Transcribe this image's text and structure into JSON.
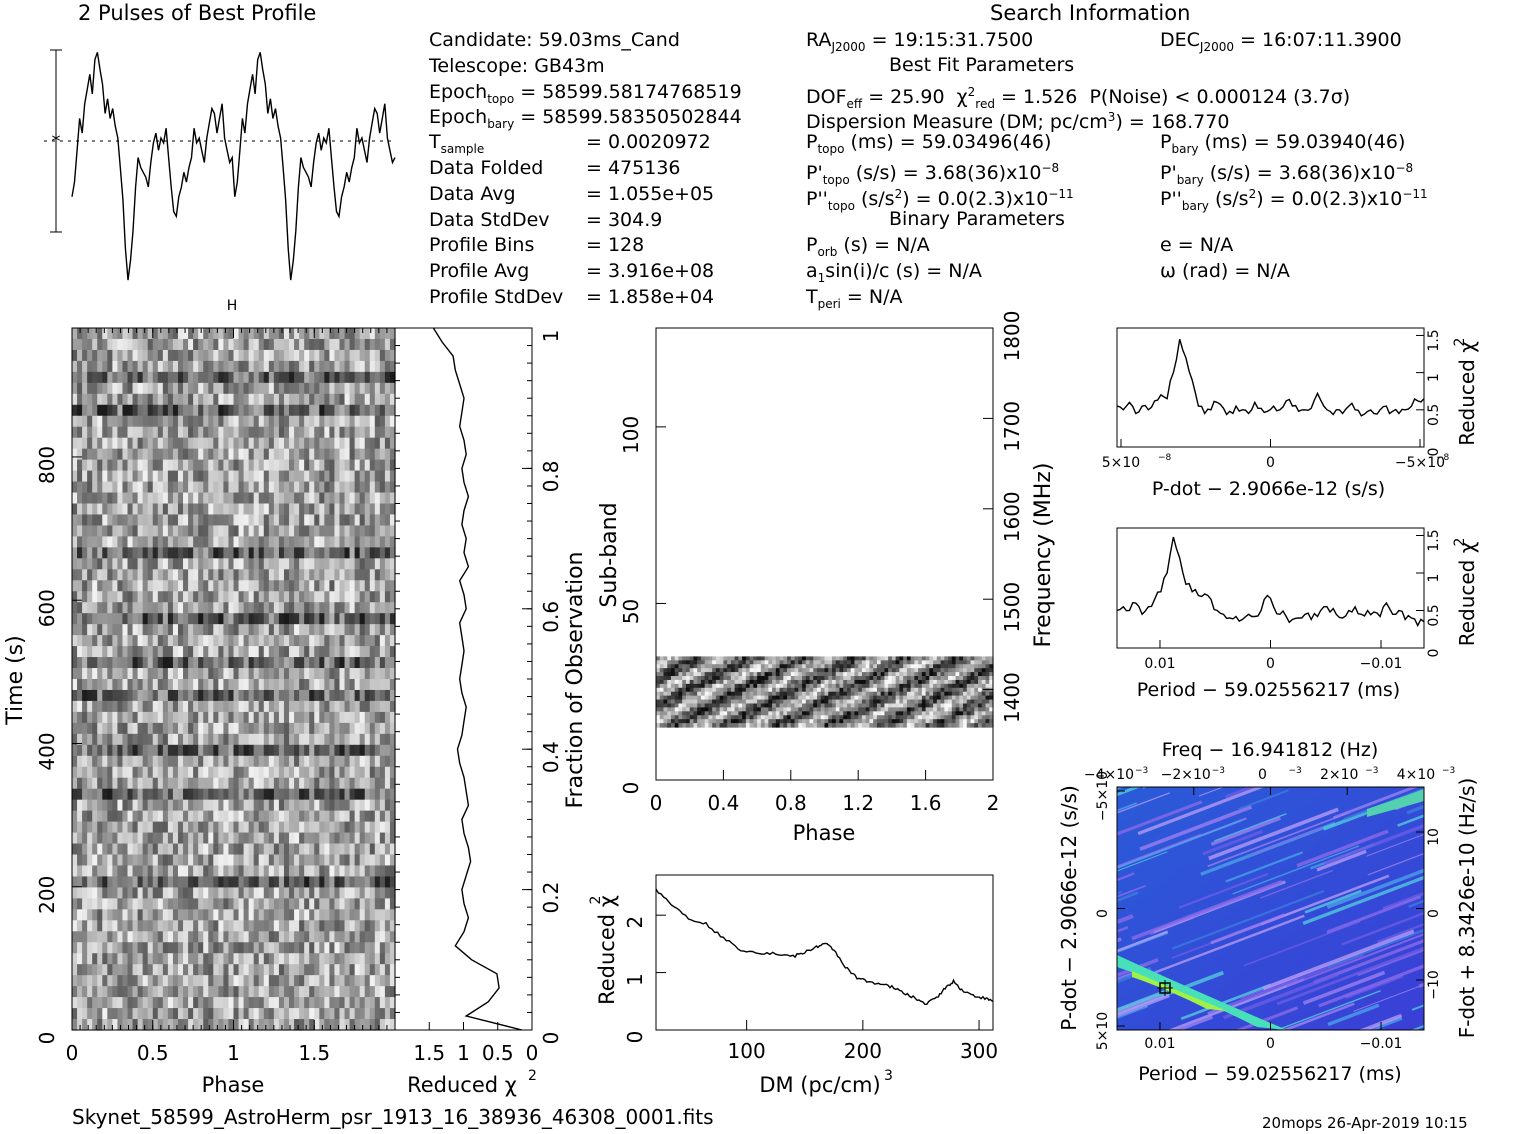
{
  "header": {
    "profile_title": "2 Pulses of Best Profile",
    "search_title": "Search Information",
    "candidate": "Candidate:  59.03ms_Cand",
    "telescope": "Telescope:  GB43m",
    "epoch_topo_label": "Epoch",
    "epoch_topo_sub": "topo",
    "epoch_topo_value": " = 58599.58174768519",
    "epoch_bary_label": "Epoch",
    "epoch_bary_sub": "bary",
    "epoch_bary_value": " = 58599.58350502844",
    "rows": [
      {
        "label": "T",
        "sub": "sample",
        "value": "=   0.0020972"
      },
      {
        "label": "Data Folded",
        "sub": "",
        "value": "=   475136"
      },
      {
        "label": "Data Avg",
        "sub": "",
        "value": "=   1.055e+05"
      },
      {
        "label": "Data StdDev",
        "sub": "",
        "value": "=   304.9"
      },
      {
        "label": "Profile Bins",
        "sub": "",
        "value": "=   128"
      },
      {
        "label": "Profile Avg",
        "sub": "",
        "value": "=   3.916e+08"
      },
      {
        "label": "Profile StdDev",
        "sub": "",
        "value": "=   1.858e+04"
      }
    ]
  },
  "search": {
    "ra": "= 19:15:31.7500",
    "dec": "= 16:07:11.3900",
    "best_fit": "Best Fit Parameters",
    "dof": "DOF",
    "dof_value": " = 25.90",
    "chi_red": " = 1.526",
    "p_noise": "P(Noise) < 0.000124   (3.7σ)",
    "dm_line": "Dispersion Measure (DM; pc/cm",
    "dm_value": ") = 168.770",
    "p_topo": " (ms) =  59.03496(46)",
    "p_bary": " (ms) =  59.03940(46)",
    "pd_topo": " (s/s) =  3.68(36)x10",
    "pd_bary": " (s/s) =  3.68(36)x10",
    "pdd_topo": " (s/s",
    "pdd_bary": " (s/s",
    "pdd_value": ") = 0.0(2.3)x10",
    "binary": "Binary Parameters",
    "porb": " (s) = N/A",
    "asini": "sin(i)/c (s) = N/A",
    "tperi": " = N/A",
    "e": "e = N/A",
    "omega": "ω (rad) = N/A"
  },
  "footer": {
    "filename": "Skynet_58599_AstroHerm_psr_1913_16_38936_46308_0001.fits",
    "stamp": "20mops 26-Apr-2019 10:15"
  },
  "chart_data": [
    {
      "id": "profile",
      "type": "line",
      "title": "2 Pulses of Best Profile",
      "x": [
        0,
        2
      ],
      "values_one_pulse": [
        0.36,
        0.42,
        0.55,
        0.68,
        0.62,
        0.74,
        0.8,
        0.86,
        0.78,
        0.92,
        0.95,
        0.88,
        0.82,
        0.7,
        0.76,
        0.68,
        0.72,
        0.65,
        0.6,
        0.48,
        0.35,
        0.15,
        0.02,
        0.1,
        0.22,
        0.4,
        0.52,
        0.48,
        0.46,
        0.44,
        0.4,
        0.5,
        0.58,
        0.62,
        0.55,
        0.6,
        0.58,
        0.64,
        0.52,
        0.4,
        0.3,
        0.28,
        0.36,
        0.4,
        0.46,
        0.42,
        0.48,
        0.52,
        0.64,
        0.58,
        0.6,
        0.55,
        0.5,
        0.6,
        0.66,
        0.72,
        0.7,
        0.62,
        0.68,
        0.74,
        0.6,
        0.55,
        0.5,
        0.52
      ]
    },
    {
      "id": "time_phase",
      "type": "heatmap",
      "xlabel": "Phase",
      "ylabel": "Time (s)",
      "xlim": [
        0,
        2
      ],
      "ylim": [
        0,
        980
      ],
      "x_ticks": [
        "0",
        "0.5",
        "1",
        "1.5"
      ],
      "y_ticks": [
        "0",
        "200",
        "400",
        "600",
        "800"
      ]
    },
    {
      "id": "chi_time",
      "type": "line",
      "xlabel": "Reduced χ²",
      "ylabel": "Fraction of Observation",
      "xlim": [
        2,
        0
      ],
      "ylim": [
        0,
        1
      ],
      "x_ticks": [
        "1.5",
        "1",
        "0.5",
        "0"
      ],
      "y_ticks": [
        "0",
        "0.2",
        "0.4",
        "0.6",
        "0.8",
        "1"
      ],
      "x": [
        0.02,
        0.04,
        0.06,
        0.08,
        0.1,
        0.12,
        0.14,
        0.16,
        0.18,
        0.2,
        0.22,
        0.24,
        0.26,
        0.28,
        0.3,
        0.32,
        0.34,
        0.36,
        0.38,
        0.4,
        0.42,
        0.44,
        0.46,
        0.48,
        0.5,
        0.52,
        0.54,
        0.56,
        0.58,
        0.6,
        0.62,
        0.64,
        0.66,
        0.68,
        0.7,
        0.72,
        0.74,
        0.76,
        0.78,
        0.8,
        0.82,
        0.84,
        0.86,
        0.88,
        0.9,
        0.92,
        0.94,
        0.96,
        0.98,
        1.0
      ],
      "values": [
        0.6,
        0.4,
        0.3,
        0.32,
        0.55,
        0.7,
        0.62,
        0.58,
        0.62,
        0.64,
        0.6,
        0.56,
        0.58,
        0.62,
        0.64,
        0.58,
        0.6,
        0.62,
        0.66,
        0.68,
        0.64,
        0.62,
        0.6,
        0.64,
        0.66,
        0.64,
        0.62,
        0.64,
        0.66,
        0.6,
        0.62,
        0.66,
        0.58,
        0.62,
        0.6,
        0.64,
        0.62,
        0.58,
        0.62,
        0.64,
        0.6,
        0.62,
        0.66,
        0.64,
        0.62,
        0.66,
        0.7,
        0.72,
        0.82,
        0.9
      ]
    },
    {
      "id": "subband",
      "type": "heatmap",
      "xlabel": "Phase",
      "ylabel": "Sub-band",
      "y2label": "Frequency (MHz)",
      "xlim": [
        0,
        2
      ],
      "ylim": [
        0,
        128
      ],
      "y2lim": [
        1300,
        1800
      ],
      "x_ticks": [
        "0",
        "0.4",
        "0.8",
        "1.2",
        "1.6",
        "2"
      ],
      "y_ticks": [
        "0",
        "50",
        "100"
      ],
      "y2_ticks": [
        "1400",
        "1500",
        "1600",
        "1700",
        "1800"
      ],
      "active_band": [
        15,
        35
      ]
    },
    {
      "id": "dm",
      "type": "line",
      "xlabel": "DM (pc/cm",
      "ylabel": "Reduced χ",
      "xlim": [
        22,
        312
      ],
      "ylim": [
        0,
        2.7
      ],
      "x_ticks": [
        "100",
        "200",
        "300"
      ],
      "y_ticks": [
        "0",
        "1",
        "2"
      ],
      "x": [
        22,
        35,
        50,
        65,
        80,
        95,
        110,
        125,
        140,
        150,
        160,
        168,
        175,
        185,
        195,
        205,
        215,
        225,
        235,
        245,
        255,
        265,
        272,
        278,
        285,
        295,
        305,
        312
      ],
      "values": [
        2.45,
        2.2,
        1.95,
        1.85,
        1.6,
        1.4,
        1.35,
        1.33,
        1.28,
        1.35,
        1.45,
        1.5,
        1.4,
        1.1,
        0.9,
        0.85,
        0.8,
        0.75,
        0.65,
        0.55,
        0.45,
        0.6,
        0.75,
        0.85,
        0.7,
        0.6,
        0.55,
        0.5
      ]
    },
    {
      "id": "pdot",
      "type": "line",
      "xlabel": "P-dot − 2.9066e-12 (s/s)",
      "ylabel": "Reduced χ",
      "xlim": [
        5e-08,
        -5e-08
      ],
      "ylim": [
        0,
        1.6
      ],
      "x_ticks": [
        "5×10",
        "0",
        "−5×10"
      ],
      "y_ticks": [
        "0",
        "0.5",
        "1",
        "1.5"
      ],
      "values": [
        0.55,
        0.5,
        0.6,
        0.45,
        0.55,
        0.5,
        0.62,
        0.7,
        0.65,
        1.0,
        1.45,
        1.2,
        0.9,
        0.55,
        0.45,
        0.5,
        0.6,
        0.52,
        0.48,
        0.55,
        0.5,
        0.45,
        0.6,
        0.52,
        0.48,
        0.55,
        0.5,
        0.62,
        0.55,
        0.48,
        0.5,
        0.52,
        0.72,
        0.55,
        0.48,
        0.5,
        0.45,
        0.55,
        0.5,
        0.42,
        0.48,
        0.45,
        0.5,
        0.55,
        0.48,
        0.45,
        0.5,
        0.55,
        0.62,
        0.65
      ]
    },
    {
      "id": "period",
      "type": "line",
      "xlabel": "Period − 59.02556217 (ms)",
      "ylabel": "Reduced χ",
      "xlim": [
        0.014,
        -0.014
      ],
      "ylim": [
        0,
        1.6
      ],
      "x_ticks": [
        "0.01",
        "0",
        "−0.01"
      ],
      "y_ticks": [
        "0",
        "0.5",
        "1",
        "1.5"
      ],
      "values": [
        0.5,
        0.55,
        0.5,
        0.6,
        0.45,
        0.55,
        0.65,
        0.75,
        1.0,
        1.48,
        1.2,
        0.85,
        0.75,
        0.7,
        0.72,
        0.65,
        0.5,
        0.45,
        0.4,
        0.42,
        0.38,
        0.45,
        0.42,
        0.5,
        0.7,
        0.55,
        0.45,
        0.42,
        0.38,
        0.4,
        0.45,
        0.38,
        0.42,
        0.55,
        0.48,
        0.45,
        0.4,
        0.5,
        0.55,
        0.45,
        0.5,
        0.48,
        0.42,
        0.6,
        0.45,
        0.5,
        0.38,
        0.4,
        0.3,
        0.35
      ]
    },
    {
      "id": "ppdot",
      "type": "heatmap",
      "title": "Freq − 16.941812 (Hz)",
      "xlabel": "Period − 59.02556217 (ms)",
      "ylabel": "P-dot − 2.9066e-12 (s/s)",
      "y2label": "F-dot + 8.3426e-10 (Hz/s)",
      "x_ticks": [
        "0.01",
        "0",
        "−0.01"
      ],
      "x2_ticks": [
        "−4×10",
        "−2×10",
        "0",
        "2×10",
        "4×10"
      ],
      "y_ticks": [
        "−5×10",
        "0",
        "5×10"
      ],
      "y2_ticks": [
        "10",
        "0",
        "−10"
      ],
      "best_x": 0.0101,
      "best_y": 3.5e-08
    }
  ]
}
